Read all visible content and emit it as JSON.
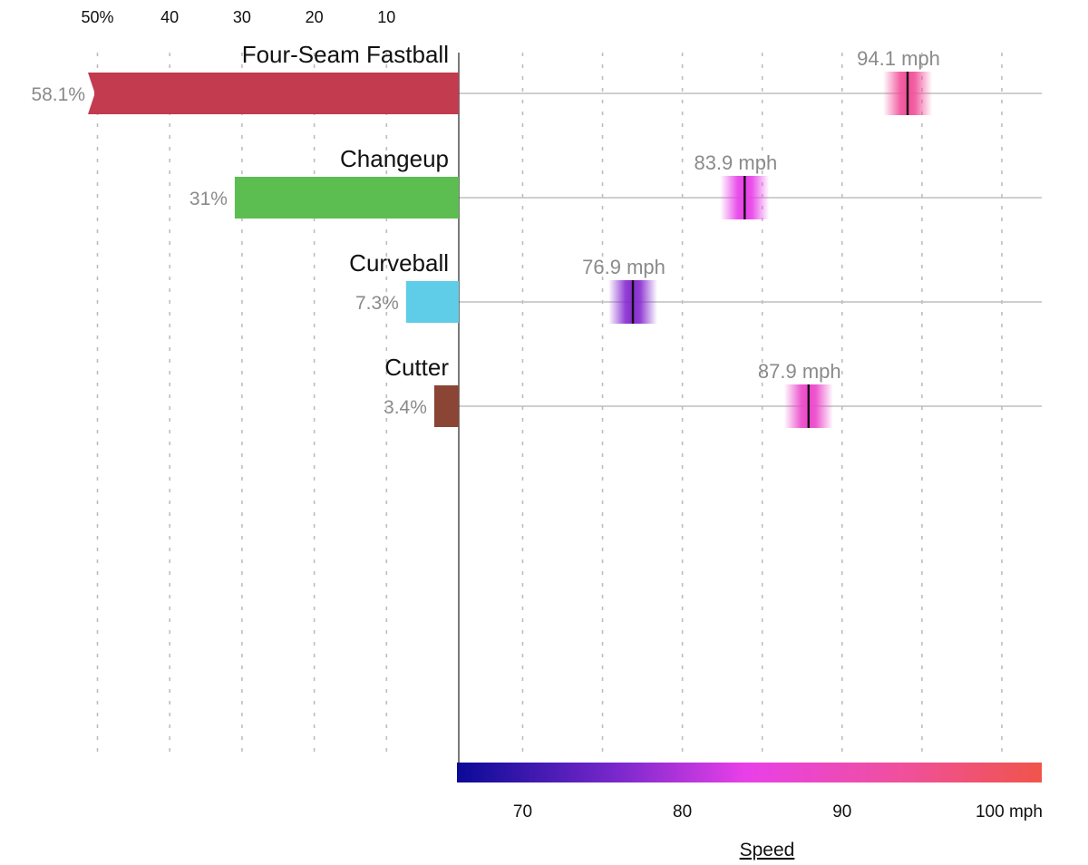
{
  "chart_data": {
    "type": "bar",
    "categories": [
      "Four-Seam Fastball",
      "Changeup",
      "Curveball",
      "Cutter"
    ],
    "usage": {
      "values": [
        58.1,
        31,
        7.3,
        3.4
      ],
      "labels": [
        "58.1%",
        "31%",
        "7.3%",
        "3.4%"
      ],
      "colors": [
        "#c23b4e",
        "#5cbd50",
        "#5fcde8",
        "#8b4535"
      ],
      "ticks": [
        {
          "value": 50,
          "label": "50%"
        },
        {
          "value": 40,
          "label": "40"
        },
        {
          "value": 30,
          "label": "30"
        },
        {
          "value": 20,
          "label": "20"
        },
        {
          "value": 10,
          "label": "10"
        }
      ],
      "xlim": [
        0,
        50
      ],
      "truncated": [
        true,
        false,
        false,
        false
      ]
    },
    "speed": {
      "values": [
        94.1,
        83.9,
        76.9,
        87.9
      ],
      "labels": [
        "94.1 mph",
        "83.9 mph",
        "76.9 mph",
        "87.9 mph"
      ],
      "ticks": [
        {
          "value": 70,
          "label": "70"
        },
        {
          "value": 80,
          "label": "80"
        },
        {
          "value": 90,
          "label": "90"
        },
        {
          "value": 100,
          "label": "100 mph"
        }
      ],
      "gridlines": [
        70,
        75,
        80,
        85,
        90,
        95,
        100
      ],
      "xlim": [
        66,
        102.5
      ],
      "xlabel": "Speed",
      "colorscale": [
        "#0a0a96",
        "#7a28cc",
        "#e840e8",
        "#f0509a",
        "#f0544a"
      ],
      "colorscale_stops": [
        66,
        76,
        84,
        94,
        102.5
      ]
    },
    "grid": true
  }
}
